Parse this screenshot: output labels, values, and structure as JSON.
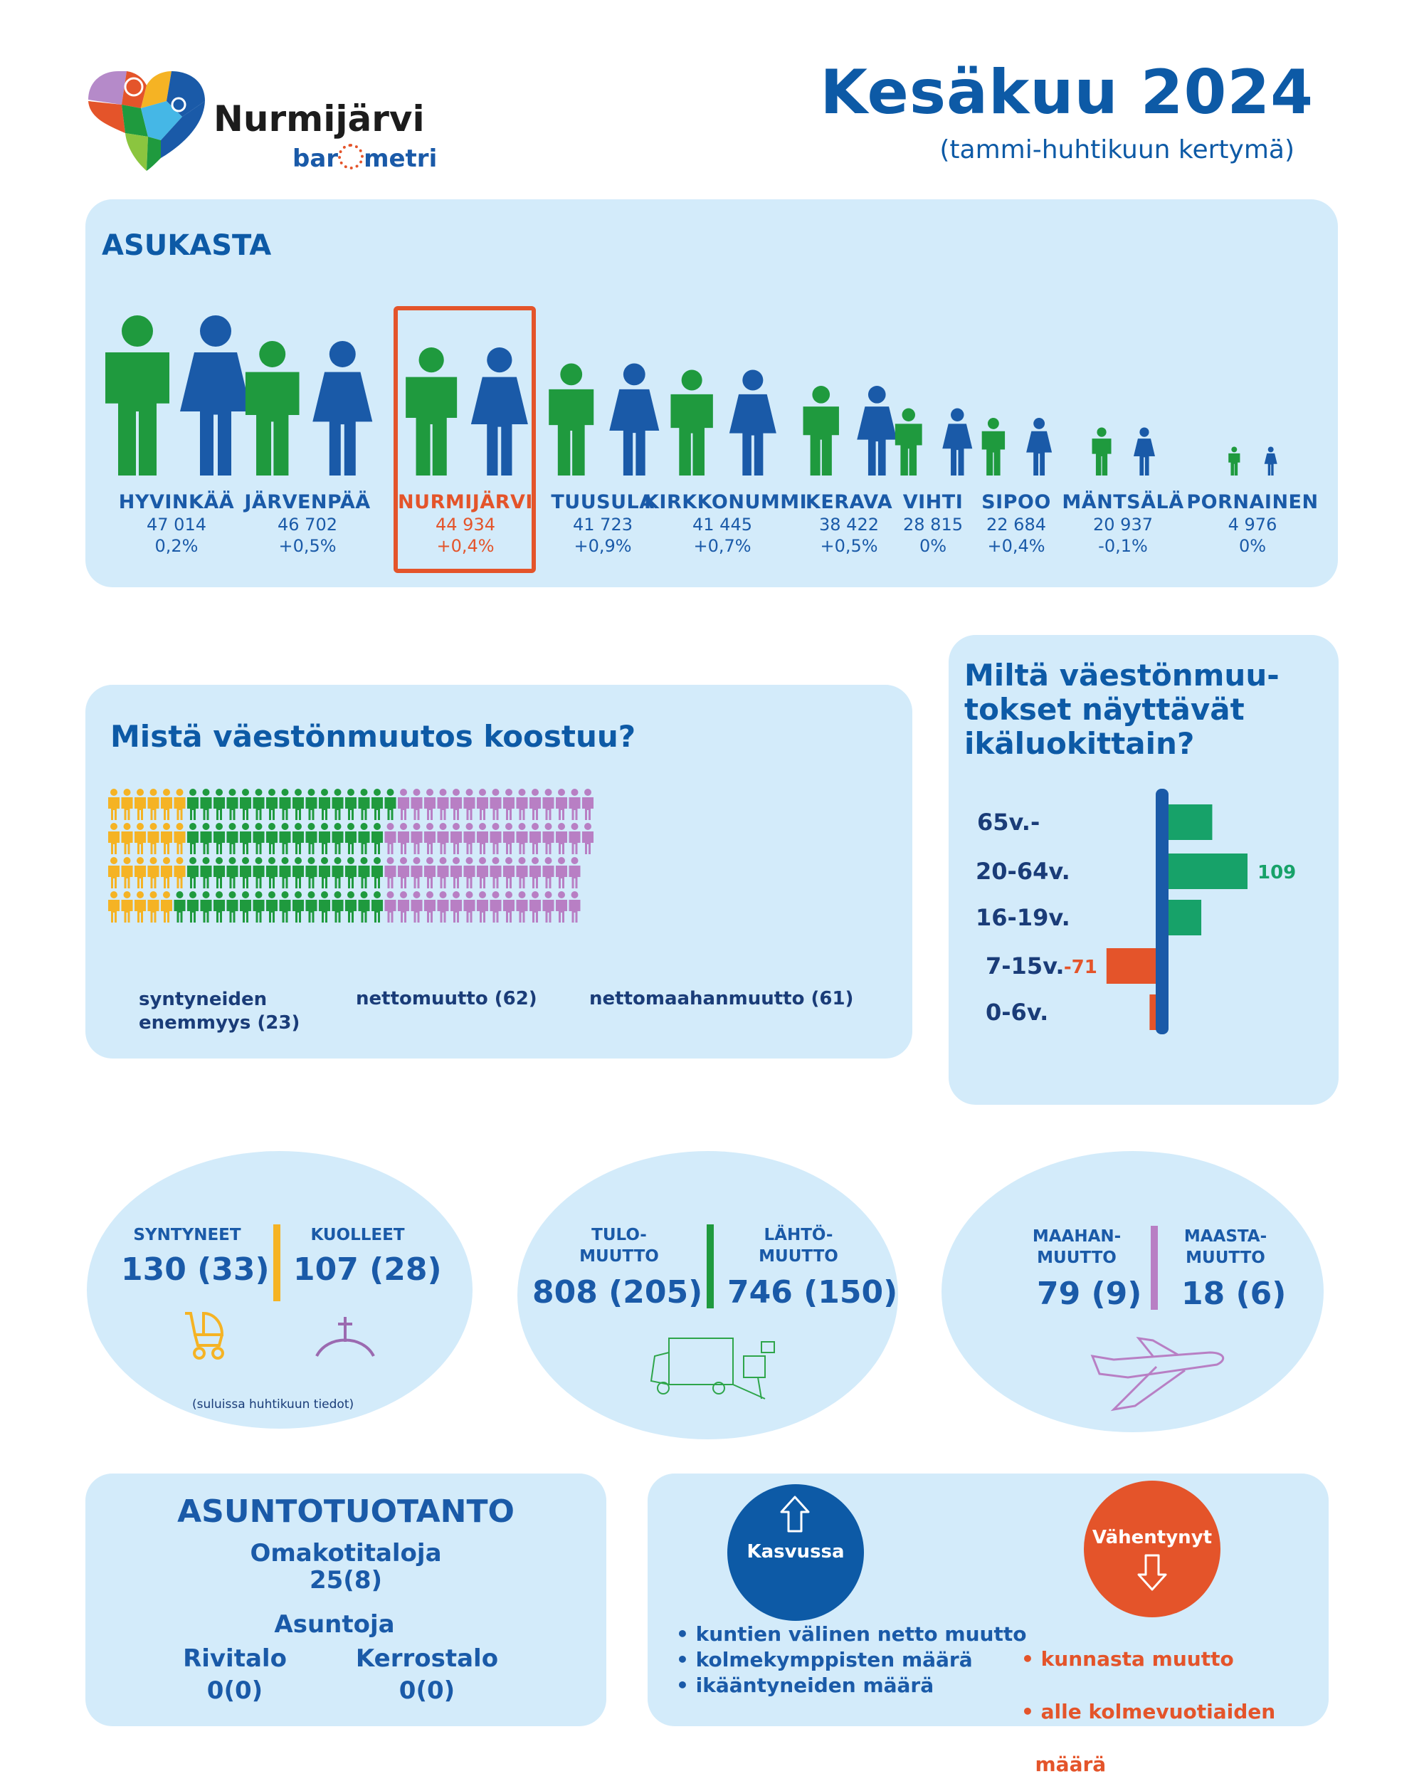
{
  "header": {
    "logo_name": "Nurmijärvi",
    "logo_sub_left": "bar",
    "logo_sub_right": "metri",
    "title": "Kesäkuu 2024",
    "subtitle": "(tammi-huhtikuun kertymä)"
  },
  "population": {
    "heading": "ASUKASTA",
    "cities": [
      {
        "name": "HYVINKÄÄ",
        "count": "47 014",
        "change": "0,2%",
        "highlight": false,
        "scale": 1.0
      },
      {
        "name": "JÄRVENPÄÄ",
        "count": "46 702",
        "change": "+0,5%",
        "highlight": false,
        "scale": 0.84
      },
      {
        "name": "NURMIJÄRVI",
        "count": "44 934",
        "change": "+0,4%",
        "highlight": true,
        "scale": 0.8
      },
      {
        "name": "TUUSULA",
        "count": "41 723",
        "change": "+0,9%",
        "highlight": false,
        "scale": 0.7
      },
      {
        "name": "KIRKKONUMMI",
        "count": "41 445",
        "change": "+0,7%",
        "highlight": false,
        "scale": 0.66
      },
      {
        "name": "KERAVA",
        "count": "38 422",
        "change": "+0,5%",
        "highlight": false,
        "scale": 0.56
      },
      {
        "name": "VIHTI",
        "count": "28 815",
        "change": "0%",
        "highlight": false,
        "scale": 0.42
      },
      {
        "name": "SIPOO",
        "count": "22 684",
        "change": "+0,4%",
        "highlight": false,
        "scale": 0.36
      },
      {
        "name": "MÄNTSÄLÄ",
        "count": "20 937",
        "change": "-0,1%",
        "highlight": false,
        "scale": 0.3
      },
      {
        "name": "PORNAINEN",
        "count": "4 976",
        "change": "0%",
        "highlight": false,
        "scale": 0.18
      }
    ]
  },
  "composition": {
    "heading": "Mistä väestönmuutos koostuu?",
    "groups": [
      {
        "label_line1": "syntyneiden",
        "label_line2": "enemmyys (23)",
        "count": 23,
        "color": "#f5b324"
      },
      {
        "label_line1": "nettomuutto (62)",
        "label_line2": "",
        "count": 62,
        "color": "#1f9a3e"
      },
      {
        "label_line1": "nettomaahanmuutto (61)",
        "label_line2": "",
        "count": 61,
        "color": "#b87fc4"
      }
    ]
  },
  "age_chart": {
    "heading_line1": "Miltä  väestönmuu-",
    "heading_line2": "tokset näyttävät",
    "heading_line3": "ikäluokittain?",
    "chart_data": {
      "type": "bar",
      "orientation": "horizontal",
      "categories": [
        "65v.-",
        "20-64v.",
        "16-19v.",
        "7-15v.",
        "0-6v."
      ],
      "values": [
        64,
        109,
        50,
        -71,
        -16
      ],
      "labels": [
        "",
        "109",
        "",
        "-71",
        ""
      ],
      "colors": [
        "#17a269",
        "#17a269",
        "#17a269",
        "#e4542a",
        "#e4542a"
      ]
    }
  },
  "vital": {
    "born_label": "SYNTYNEET",
    "born_value": "130 (33)",
    "died_label": "KUOLLEET",
    "died_value": "107 (28)",
    "note": "(suluissa huhtikuun tiedot)"
  },
  "migration": {
    "in_label_1": "TULO-",
    "in_label_2": "MUUTTO",
    "in_value": "808 (205)",
    "out_label_1": "LÄHTÖ-",
    "out_label_2": "MUUTTO",
    "out_value": "746 (150)"
  },
  "immigration": {
    "in_label_1": "MAAHAN-",
    "in_label_2": "MUUTTO",
    "in_value": "79 (9)",
    "out_label_1": "MAASTA-",
    "out_label_2": "MUUTTO",
    "out_value": "18 (6)"
  },
  "housing": {
    "heading": "ASUNTOTUOTANTO",
    "detached_label": "Omakotitaloja",
    "detached_value": "25(8)",
    "apartments_label": "Asuntoja",
    "row_label": "Rivitalo",
    "row_value": "0(0)",
    "block_label": "Kerrostalo",
    "block_value": "0(0)"
  },
  "trends": {
    "growing_label": "Kasvussa",
    "declining_label": "Vähentynyt",
    "growing_items": [
      "• kuntien välinen netto muutto",
      "• kolmekymppisten määrä",
      "• ikääntyneiden määrä"
    ],
    "declining_items": [
      "• kunnasta muutto",
      "• alle kolmevuotiaiden",
      "  määrä"
    ]
  },
  "colors": {
    "panel": "#d3ebfa",
    "blue": "#1a5aa8",
    "green": "#1f9a3e",
    "red": "#e4542a",
    "purple": "#b87fc4",
    "yellow": "#f5b324"
  }
}
